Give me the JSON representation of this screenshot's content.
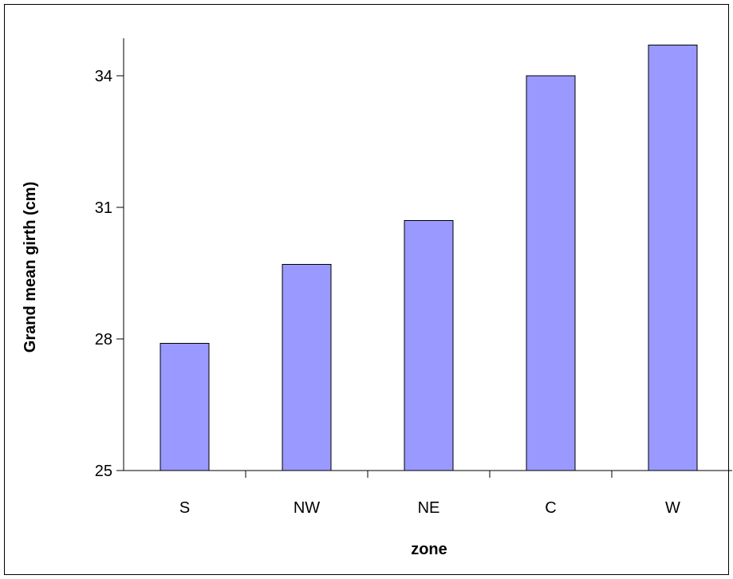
{
  "chart_data": {
    "type": "bar",
    "title": "",
    "xlabel": "zone",
    "ylabel": "Grand mean girth (cm)",
    "categories": [
      "S",
      "NW",
      "NE",
      "C",
      "W"
    ],
    "values": [
      27.9,
      29.7,
      30.7,
      34.0,
      34.7
    ],
    "ylim": [
      25,
      35
    ],
    "yticks": [
      25,
      28,
      31,
      34
    ],
    "grid": false,
    "legend": "none",
    "bar_color": "#9999ff",
    "bar_edge_color": "#000000"
  }
}
